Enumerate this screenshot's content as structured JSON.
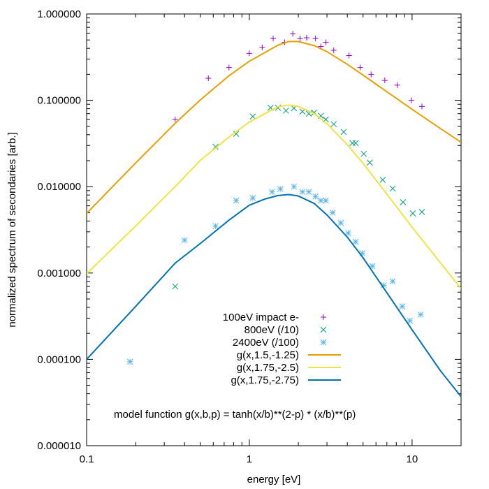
{
  "chart_data": {
    "type": "scatter",
    "xlabel": "energy [eV]",
    "ylabel": "normalized spectrum of secondaries [arb.]",
    "xscale": "log",
    "yscale": "log",
    "xlim": [
      0.1,
      20
    ],
    "ylim": [
      1e-05,
      1
    ],
    "grid": false,
    "legend_position": "bottom-center",
    "x_ticks": [
      {
        "value": 0.1,
        "label": "0.1"
      },
      {
        "value": 1,
        "label": "1"
      },
      {
        "value": 10,
        "label": "10"
      }
    ],
    "y_ticks": [
      {
        "value": 1e-05,
        "label": "0.000010"
      },
      {
        "value": 0.0001,
        "label": "0.000100"
      },
      {
        "value": 0.001,
        "label": "0.001000"
      },
      {
        "value": 0.01,
        "label": "0.010000"
      },
      {
        "value": 0.1,
        "label": "0.100000"
      },
      {
        "value": 1,
        "label": "1.000000"
      }
    ],
    "annotation": "model function g(x,b,p) = tanh(x/b)**(2-p) * (x/b)**(p)",
    "series": [
      {
        "name": "100eV impact e-",
        "kind": "points",
        "marker": "plus",
        "color": "#9400d3",
        "points": [
          [
            0.35,
            0.06
          ],
          [
            0.56,
            0.18
          ],
          [
            0.75,
            0.24
          ],
          [
            1.0,
            0.35
          ],
          [
            1.2,
            0.41
          ],
          [
            1.4,
            0.52
          ],
          [
            1.65,
            0.47
          ],
          [
            1.85,
            0.59
          ],
          [
            2.05,
            0.52
          ],
          [
            2.25,
            0.53
          ],
          [
            2.55,
            0.52
          ],
          [
            2.75,
            0.42
          ],
          [
            2.95,
            0.47
          ],
          [
            3.3,
            0.38
          ],
          [
            4.1,
            0.33
          ],
          [
            4.8,
            0.24
          ],
          [
            5.6,
            0.2
          ],
          [
            6.8,
            0.17
          ],
          [
            8.1,
            0.15
          ],
          [
            9.9,
            0.1
          ],
          [
            11.5,
            0.085
          ]
        ]
      },
      {
        "name": "800eV (/10)",
        "kind": "points",
        "marker": "cross",
        "color": "#009e73",
        "points": [
          [
            0.35,
            0.0007
          ],
          [
            0.62,
            0.029
          ],
          [
            0.83,
            0.041
          ],
          [
            1.05,
            0.065
          ],
          [
            1.35,
            0.082
          ],
          [
            1.5,
            0.082
          ],
          [
            1.68,
            0.076
          ],
          [
            1.88,
            0.081
          ],
          [
            2.12,
            0.074
          ],
          [
            2.32,
            0.07
          ],
          [
            2.5,
            0.072
          ],
          [
            2.75,
            0.066
          ],
          [
            2.95,
            0.06
          ],
          [
            3.3,
            0.053
          ],
          [
            3.8,
            0.043
          ],
          [
            4.3,
            0.032
          ],
          [
            4.5,
            0.032
          ],
          [
            5.05,
            0.024
          ],
          [
            5.5,
            0.019
          ],
          [
            6.6,
            0.012
          ],
          [
            7.6,
            0.0095
          ],
          [
            8.8,
            0.0066
          ],
          [
            10.1,
            0.0049
          ],
          [
            11.5,
            0.0051
          ]
        ]
      },
      {
        "name": "2400eV (/100)",
        "kind": "points",
        "marker": "star",
        "color": "#56b4e9",
        "points": [
          [
            0.185,
            9.4e-05
          ],
          [
            0.4,
            0.0024
          ],
          [
            0.62,
            0.0035
          ],
          [
            0.83,
            0.0069
          ],
          [
            1.05,
            0.0074
          ],
          [
            1.38,
            0.0087
          ],
          [
            1.55,
            0.0094
          ],
          [
            1.88,
            0.01
          ],
          [
            2.12,
            0.0087
          ],
          [
            2.32,
            0.0087
          ],
          [
            2.55,
            0.0077
          ],
          [
            2.75,
            0.0069
          ],
          [
            2.95,
            0.0069
          ],
          [
            3.25,
            0.005
          ],
          [
            3.65,
            0.0038
          ],
          [
            4.05,
            0.0029
          ],
          [
            4.5,
            0.0023
          ],
          [
            4.95,
            0.0017
          ],
          [
            5.7,
            0.0012
          ],
          [
            6.7,
            0.00072
          ],
          [
            7.6,
            0.0008
          ],
          [
            8.7,
            0.00041
          ],
          [
            9.7,
            0.00028
          ],
          [
            11.3,
            0.00033
          ]
        ]
      },
      {
        "name": "g(x,1.5,-1.25)",
        "kind": "line",
        "color": "#e69f00",
        "points": [
          [
            0.1,
            0.0049
          ],
          [
            0.2,
            0.0188
          ],
          [
            0.35,
            0.0541
          ],
          [
            0.5,
            0.1012
          ],
          [
            0.75,
            0.1927
          ],
          [
            1.0,
            0.2831
          ],
          [
            1.5,
            0.4354
          ],
          [
            1.75,
            0.4804
          ],
          [
            2.0,
            0.4792
          ],
          [
            2.5,
            0.4304
          ],
          [
            3.0,
            0.3661
          ],
          [
            4.0,
            0.2612
          ],
          [
            5.0,
            0.1959
          ],
          [
            7.0,
            0.1257
          ],
          [
            10.0,
            0.0787
          ],
          [
            15.0,
            0.0468
          ],
          [
            20.0,
            0.0327
          ]
        ]
      },
      {
        "name": "g(x,1.75,-2.5)",
        "kind": "line",
        "color": "#f0e442",
        "points": [
          [
            0.1,
            0.00098
          ],
          [
            0.2,
            0.0035
          ],
          [
            0.35,
            0.01
          ],
          [
            0.5,
            0.0202
          ],
          [
            0.75,
            0.0376
          ],
          [
            1.0,
            0.056
          ],
          [
            1.25,
            0.0704
          ],
          [
            1.5,
            0.0841
          ],
          [
            1.75,
            0.0881
          ],
          [
            2.0,
            0.0852
          ],
          [
            2.5,
            0.0701
          ],
          [
            3.0,
            0.0535
          ],
          [
            4.0,
            0.0306
          ],
          [
            5.0,
            0.0186
          ],
          [
            7.0,
            0.0082
          ],
          [
            10.0,
            0.0034
          ],
          [
            15.0,
            0.0013
          ],
          [
            20.0,
            0.00066
          ]
        ]
      },
      {
        "name": "g(x,1.75,-2.75)",
        "kind": "line",
        "color": "#0072b2",
        "points": [
          [
            0.1,
            0.0001
          ],
          [
            0.2,
            0.00041
          ],
          [
            0.35,
            0.0013
          ],
          [
            0.5,
            0.0022
          ],
          [
            0.75,
            0.0041
          ],
          [
            1.0,
            0.0061
          ],
          [
            1.25,
            0.0072
          ],
          [
            1.5,
            0.0079
          ],
          [
            1.75,
            0.0081
          ],
          [
            2.0,
            0.0078
          ],
          [
            2.5,
            0.0064
          ],
          [
            3.0,
            0.0047
          ],
          [
            4.0,
            0.0026
          ],
          [
            5.0,
            0.0015
          ],
          [
            7.0,
            0.00059
          ],
          [
            10.0,
            0.00022
          ],
          [
            15.0,
            7.3e-05
          ],
          [
            20.0,
            3.7e-05
          ]
        ]
      }
    ]
  }
}
